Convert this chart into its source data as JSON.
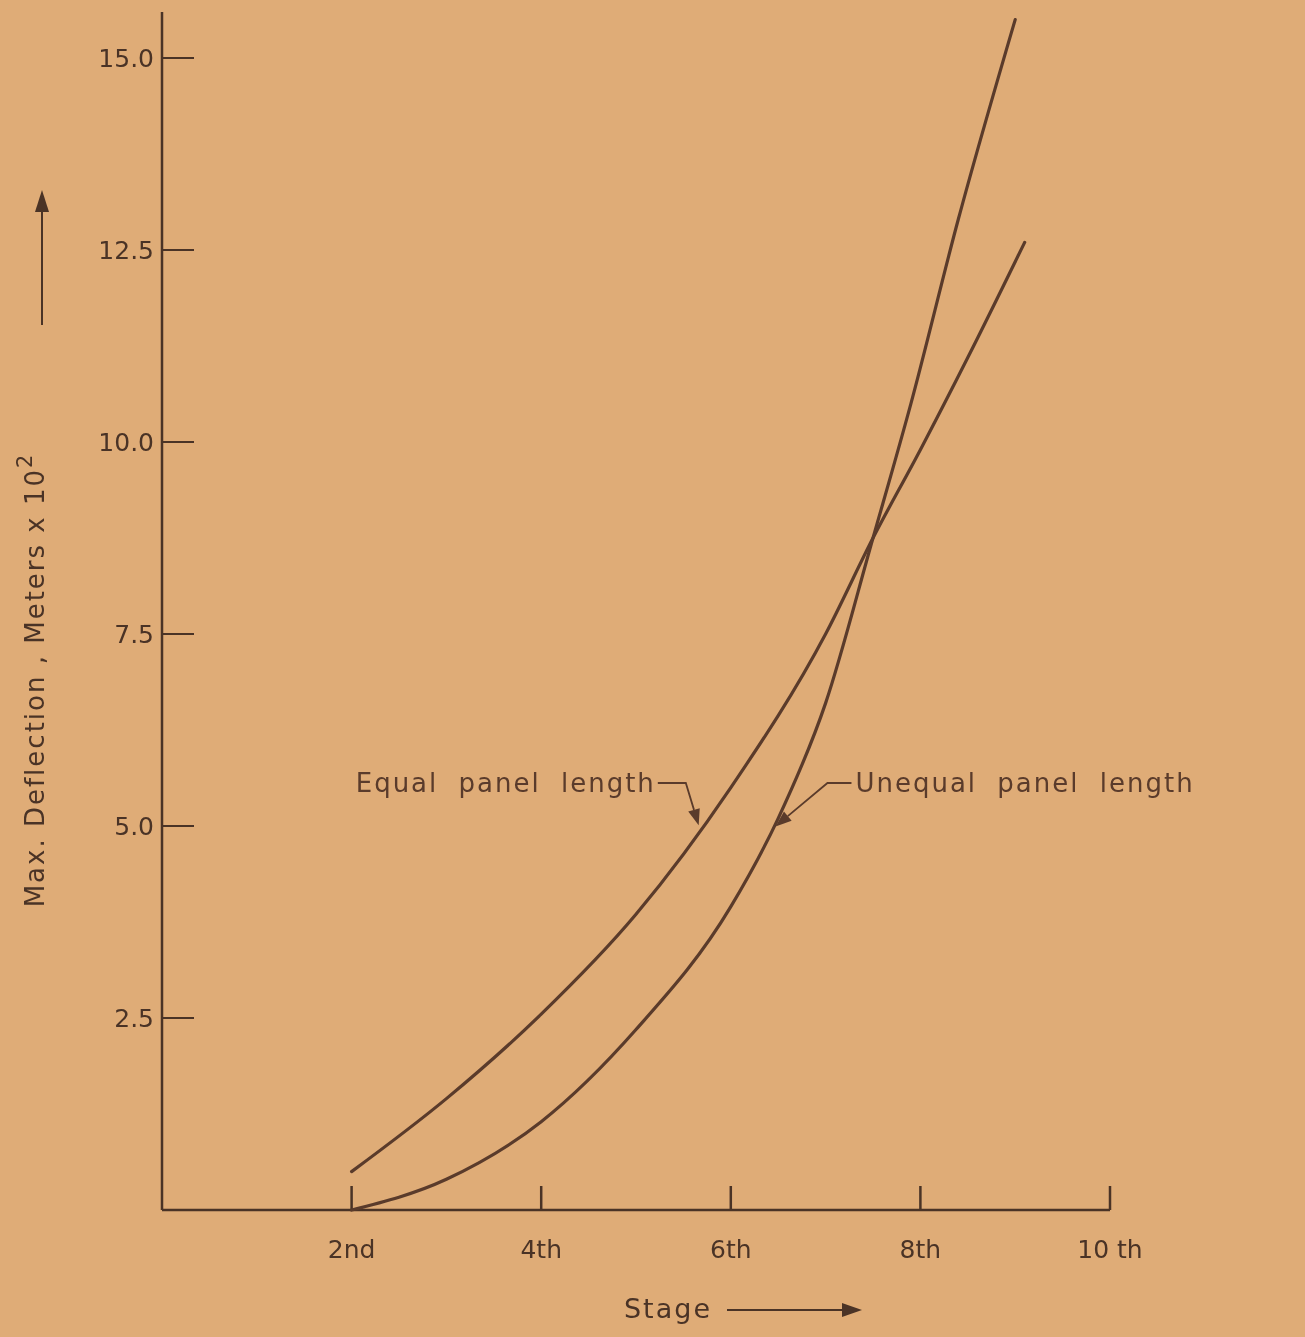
{
  "chart_data": {
    "type": "line",
    "xlabel": "Stage",
    "ylabel": "Max. Deflection , Meters x 10$^{2}$",
    "xlim": [
      0,
      10
    ],
    "ylim": [
      0,
      15.6
    ],
    "xticks": [
      {
        "value": 2,
        "label": "2nd"
      },
      {
        "value": 4,
        "label": "4th"
      },
      {
        "value": 6,
        "label": "6th"
      },
      {
        "value": 8,
        "label": "8th"
      },
      {
        "value": 10,
        "label": "10 th"
      }
    ],
    "yticks": [
      {
        "value": 2.5,
        "label": "2.5"
      },
      {
        "value": 5,
        "label": "5.0"
      },
      {
        "value": 7.5,
        "label": "7.5"
      },
      {
        "value": 10,
        "label": "10.0"
      },
      {
        "value": 12.5,
        "label": "12.5"
      },
      {
        "value": 15,
        "label": "15.0"
      }
    ],
    "grid": false,
    "marker": "none",
    "line_style": "solid",
    "series": [
      {
        "name": "Equal panel length",
        "color": "#5a3b2b",
        "x": [
          2,
          3,
          4,
          5,
          6,
          7,
          7.5,
          8,
          8.5,
          9.1
        ],
        "values": [
          0.5,
          1.45,
          2.55,
          3.85,
          5.5,
          7.5,
          8.75,
          9.9,
          11.1,
          12.6
        ]
      },
      {
        "name": "Unequal panel length",
        "color": "#5a3b2b",
        "x": [
          2,
          3,
          4,
          5,
          6,
          6.5,
          7,
          7.5,
          7.9,
          8.4,
          9.0
        ],
        "values": [
          0,
          0.4,
          1.15,
          2.35,
          3.95,
          5.1,
          6.6,
          8.75,
          10.5,
          12.9,
          15.5
        ]
      }
    ]
  }
}
